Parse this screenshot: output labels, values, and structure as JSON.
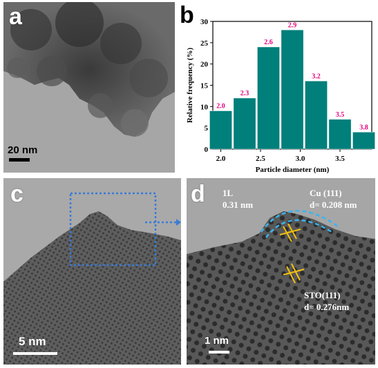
{
  "panels": {
    "a": {
      "letter": "a",
      "scale_label": "20 nm"
    },
    "b": {
      "letter": "b"
    },
    "c": {
      "letter": "c",
      "scale_label": "5 nm"
    },
    "d": {
      "letter": "d",
      "scale_label": "1 nm",
      "annot_layer_1": "1L",
      "annot_layer_2": "0.31 nm",
      "annot_cu_1": "Cu (111)",
      "annot_cu_2": "d= 0.208 nm",
      "annot_sto_1": "STO(111)",
      "annot_sto_2": "d= 0.276nm"
    }
  },
  "colors": {
    "bar": "#007f7b",
    "data_label": "#e6007e",
    "dotted_box": "#3a7bd5",
    "dashed_arc": "#3ab4f0",
    "lattice_marks": "#f2c010"
  },
  "chart_data": {
    "type": "bar",
    "xlabel": "Particle diameter (nm)",
    "ylabel": "Relative frequency (%)",
    "ylim": [
      0,
      30
    ],
    "yticks": [
      0,
      5,
      10,
      15,
      20,
      25,
      30
    ],
    "xlim": [
      1.9,
      3.9
    ],
    "xticks": [
      "2.0",
      "2.5",
      "3.0",
      "3.5"
    ],
    "xtick_values": [
      2.0,
      2.5,
      3.0,
      3.5
    ],
    "bin_width": 0.28,
    "bar_centers": [
      2.0,
      2.3,
      2.6,
      2.9,
      3.2,
      3.5,
      3.8
    ],
    "bar_labels": [
      "2.0",
      "2.3",
      "2.6",
      "2.9",
      "3.2",
      "3.5",
      "3.8"
    ],
    "values": [
      9,
      12,
      24,
      28,
      16,
      7,
      4
    ]
  }
}
